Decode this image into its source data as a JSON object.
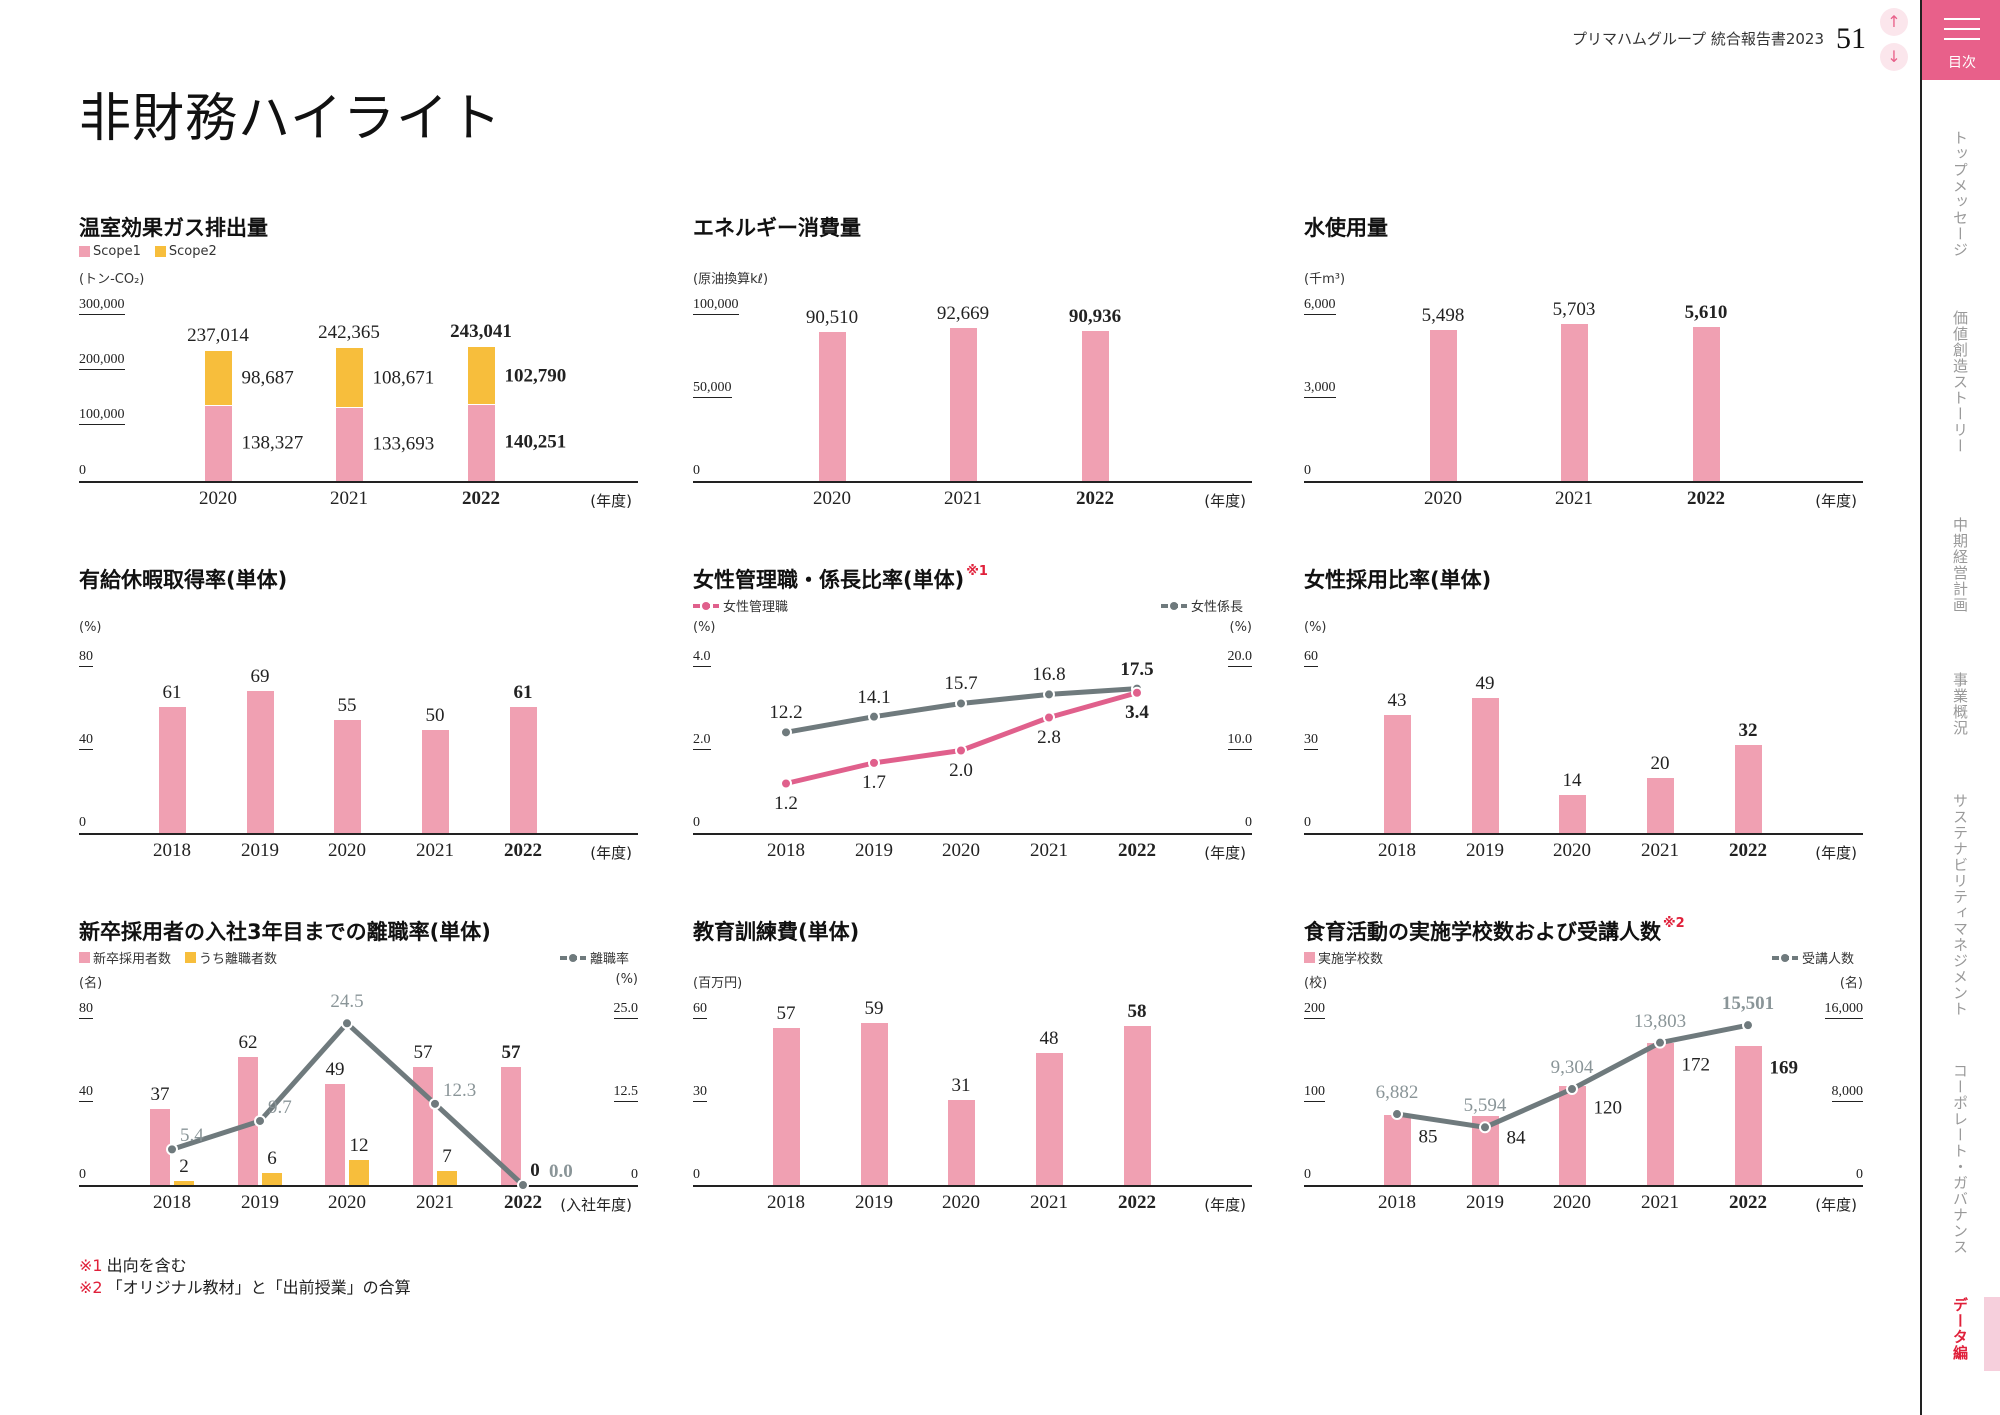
{
  "header": {
    "doc_title": "プリマハムグループ 統合報告書2023",
    "page_number": "51",
    "up_icon": "↑",
    "down_icon": "↓"
  },
  "page_title": "非財務ハイライト",
  "menu": {
    "label": "目次",
    "icon": "hamburger-icon",
    "accent": "#e8608a"
  },
  "sidebar": {
    "items": [
      {
        "label": "トップメッセージ",
        "active": false
      },
      {
        "label": "価値創造ストーリー",
        "active": false
      },
      {
        "label": "中期経営計画",
        "active": false
      },
      {
        "label": "事業概況",
        "active": false
      },
      {
        "label": "サステナビリティマネジメント",
        "active": false
      },
      {
        "label": "コーポレート・ガバナンス",
        "active": false
      },
      {
        "label": "データ編",
        "active": true
      }
    ]
  },
  "footnotes": [
    {
      "mark": "※1",
      "text": "出向を含む"
    },
    {
      "mark": "※2",
      "text": "「オリジナル教材」と「出前授業」の合算"
    }
  ],
  "chart_data": [
    {
      "type": "bar",
      "stacked": true,
      "title": "温室効果ガス排出量",
      "note": "",
      "categories": [
        "2020",
        "2021",
        "2022"
      ],
      "xlabel": "(年度)",
      "y_left": {
        "unit": "(トン-CO₂)",
        "lim": [
          0,
          300000
        ],
        "ticks": [
          0,
          100000,
          200000,
          300000
        ],
        "tick_labels": [
          "0",
          "100,000",
          "200,000",
          "300,000"
        ]
      },
      "series": [
        {
          "name": "Scope1",
          "kind": "bar",
          "axis": "left",
          "legend_side": "left",
          "color": "#f0a0b2",
          "values": [
            138327,
            133693,
            140251
          ],
          "labels": [
            "138,327",
            "133,693",
            "140,251"
          ]
        },
        {
          "name": "Scope2",
          "kind": "bar",
          "axis": "left",
          "legend_side": "left",
          "color": "#f7be3c",
          "values": [
            98687,
            108671,
            102790
          ],
          "labels": [
            "98,687",
            "108,671",
            "102,790"
          ]
        }
      ],
      "totals": {
        "values": [
          237014,
          242365,
          243041
        ],
        "labels": [
          "237,014",
          "242,365",
          "243,041"
        ]
      }
    },
    {
      "type": "bar",
      "title": "エネルギー消費量",
      "note": "",
      "categories": [
        "2020",
        "2021",
        "2022"
      ],
      "xlabel": "(年度)",
      "y_left": {
        "unit": "(原油換算kℓ)",
        "lim": [
          0,
          100000
        ],
        "ticks": [
          0,
          50000,
          100000
        ],
        "tick_labels": [
          "0",
          "50,000",
          "100,000"
        ]
      },
      "series": [
        {
          "kind": "bar",
          "axis": "left",
          "color": "#f0a0b2",
          "values": [
            90510,
            92669,
            90936
          ],
          "labels": [
            "90,510",
            "92,669",
            "90,936"
          ]
        }
      ]
    },
    {
      "type": "bar",
      "title": "水使用量",
      "note": "",
      "categories": [
        "2020",
        "2021",
        "2022"
      ],
      "xlabel": "(年度)",
      "y_left": {
        "unit": "(千m³)",
        "lim": [
          0,
          6000
        ],
        "ticks": [
          0,
          3000,
          6000
        ],
        "tick_labels": [
          "0",
          "3,000",
          "6,000"
        ]
      },
      "series": [
        {
          "kind": "bar",
          "axis": "left",
          "color": "#f0a0b2",
          "values": [
            5498,
            5703,
            5610
          ],
          "labels": [
            "5,498",
            "5,703",
            "5,610"
          ]
        }
      ]
    },
    {
      "type": "bar",
      "title": "有給休暇取得率(単体)",
      "note": "",
      "categories": [
        "2018",
        "2019",
        "2020",
        "2021",
        "2022"
      ],
      "xlabel": "(年度)",
      "y_left": {
        "unit": "(%)",
        "lim": [
          0,
          80
        ],
        "ticks": [
          0,
          40,
          80
        ],
        "tick_labels": [
          "0",
          "40",
          "80"
        ]
      },
      "series": [
        {
          "kind": "bar",
          "axis": "left",
          "color": "#f0a0b2",
          "values": [
            61,
            69,
            55,
            50,
            61
          ],
          "labels": [
            "61",
            "69",
            "55",
            "50",
            "61"
          ]
        }
      ]
    },
    {
      "type": "line",
      "title": "女性管理職・係長比率(単体)",
      "note": "※1",
      "categories": [
        "2018",
        "2019",
        "2020",
        "2021",
        "2022"
      ],
      "xlabel": "(年度)",
      "y_left": {
        "unit": "(%)",
        "lim": [
          0,
          4.0
        ],
        "ticks": [
          0,
          2.0,
          4.0
        ],
        "tick_labels": [
          "0",
          "2.0",
          "4.0"
        ]
      },
      "y_right": {
        "unit": "(%)",
        "lim": [
          0,
          20.0
        ],
        "ticks": [
          0,
          10.0,
          20.0
        ],
        "tick_labels": [
          "0",
          "10.0",
          "20.0"
        ]
      },
      "series": [
        {
          "name": "女性係長",
          "kind": "line",
          "axis": "right",
          "legend_side": "right",
          "color": "#6f7a7d",
          "label_color": "#222222",
          "values": [
            12.2,
            14.1,
            15.7,
            16.8,
            17.5
          ],
          "labels": [
            "12.2",
            "14.1",
            "15.7",
            "16.8",
            "17.5"
          ]
        },
        {
          "name": "女性管理職",
          "kind": "line",
          "axis": "left",
          "legend_side": "left",
          "color": "#e0608c",
          "label_color": "#222222",
          "values": [
            1.2,
            1.7,
            2.0,
            2.8,
            3.4
          ],
          "labels": [
            "1.2",
            "1.7",
            "2.0",
            "2.8",
            "3.4"
          ]
        }
      ]
    },
    {
      "type": "bar",
      "title": "女性採用比率(単体)",
      "note": "",
      "categories": [
        "2018",
        "2019",
        "2020",
        "2021",
        "2022"
      ],
      "xlabel": "(年度)",
      "y_left": {
        "unit": "(%)",
        "lim": [
          0,
          60
        ],
        "ticks": [
          0,
          30,
          60
        ],
        "tick_labels": [
          "0",
          "30",
          "60"
        ]
      },
      "series": [
        {
          "kind": "bar",
          "axis": "left",
          "color": "#f0a0b2",
          "values": [
            43,
            49,
            14,
            20,
            32
          ],
          "labels": [
            "43",
            "49",
            "14",
            "20",
            "32"
          ]
        }
      ]
    },
    {
      "type": "bar+line",
      "title": "新卒採用者の入社3年目までの離職率(単体)",
      "note": "",
      "categories": [
        "2018",
        "2019",
        "2020",
        "2021",
        "2022"
      ],
      "xlabel": "(入社年度)",
      "y_left": {
        "unit": "(名)",
        "lim": [
          0,
          80
        ],
        "ticks": [
          0,
          40,
          80
        ],
        "tick_labels": [
          "0",
          "40",
          "80"
        ]
      },
      "y_right": {
        "unit": "(%)",
        "lim": [
          0,
          25.0
        ],
        "ticks": [
          0,
          12.5,
          25.0
        ],
        "tick_labels": [
          "0",
          "12.5",
          "25.0"
        ]
      },
      "series": [
        {
          "name": "新卒採用者数",
          "kind": "bar",
          "axis": "left",
          "legend_side": "left",
          "color": "#f0a0b2",
          "values": [
            37,
            62,
            49,
            57,
            57
          ],
          "labels": [
            "37",
            "62",
            "49",
            "57",
            "57"
          ]
        },
        {
          "name": "うち離職者数",
          "kind": "bar",
          "axis": "left",
          "legend_side": "left",
          "color": "#f7be3c",
          "values": [
            2,
            6,
            12,
            7,
            0
          ],
          "labels": [
            "2",
            "6",
            "12",
            "7",
            "0"
          ]
        },
        {
          "name": "離職率",
          "kind": "line",
          "axis": "right",
          "legend_side": "right",
          "color": "#6f7a7d",
          "label_color": "#8a9598",
          "values": [
            5.4,
            9.7,
            24.5,
            12.3,
            0.0
          ],
          "labels": [
            "5.4",
            "9.7",
            "24.5",
            "12.3",
            "0.0"
          ]
        }
      ]
    },
    {
      "type": "bar",
      "title": "教育訓練費(単体)",
      "note": "",
      "categories": [
        "2018",
        "2019",
        "2020",
        "2021",
        "2022"
      ],
      "xlabel": "(年度)",
      "y_left": {
        "unit": "(百万円)",
        "lim": [
          0,
          60
        ],
        "ticks": [
          0,
          30,
          60
        ],
        "tick_labels": [
          "0",
          "30",
          "60"
        ]
      },
      "series": [
        {
          "kind": "bar",
          "axis": "left",
          "color": "#f0a0b2",
          "values": [
            57,
            59,
            31,
            48,
            58
          ],
          "labels": [
            "57",
            "59",
            "31",
            "48",
            "58"
          ]
        }
      ]
    },
    {
      "type": "bar+line",
      "title": "食育活動の実施学校数および受講人数",
      "note": "※2",
      "categories": [
        "2018",
        "2019",
        "2020",
        "2021",
        "2022"
      ],
      "xlabel": "(年度)",
      "y_left": {
        "unit": "(校)",
        "lim": [
          0,
          200
        ],
        "ticks": [
          0,
          100,
          200
        ],
        "tick_labels": [
          "0",
          "100",
          "200"
        ]
      },
      "y_right": {
        "unit": "(名)",
        "lim": [
          0,
          16000
        ],
        "ticks": [
          0,
          8000,
          16000
        ],
        "tick_labels": [
          "0",
          "8,000",
          "16,000"
        ]
      },
      "series": [
        {
          "name": "実施学校数",
          "kind": "bar",
          "axis": "left",
          "legend_side": "left",
          "color": "#f0a0b2",
          "values": [
            85,
            84,
            120,
            172,
            169
          ],
          "labels": [
            "85",
            "84",
            "120",
            "172",
            "169"
          ]
        },
        {
          "name": "受講人数",
          "kind": "line",
          "axis": "right",
          "legend_side": "right",
          "color": "#6f7a7d",
          "label_color": "#8a9598",
          "values": [
            6882,
            5594,
            9304,
            13803,
            15501
          ],
          "labels": [
            "6,882",
            "5,594",
            "9,304",
            "13,803",
            "15,501"
          ]
        }
      ]
    }
  ]
}
